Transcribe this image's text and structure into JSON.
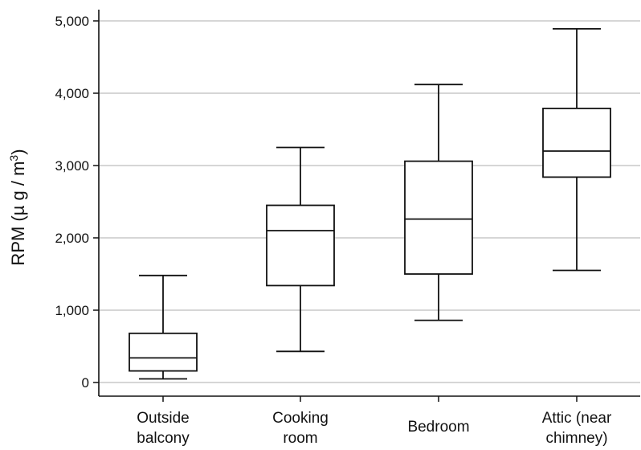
{
  "chart_data": {
    "type": "boxplot",
    "ylabel": "RPM (µ g / m3)",
    "ylim": [
      0,
      5000
    ],
    "yticks": [
      0,
      1000,
      2000,
      3000,
      4000,
      5000
    ],
    "ytick_labels": [
      "0",
      "1,000",
      "2,000",
      "3,000",
      "4,000",
      "5,000"
    ],
    "grid": true,
    "categories": [
      [
        "Outside",
        "balcony"
      ],
      [
        "Cooking",
        "room"
      ],
      [
        "Bedroom"
      ],
      [
        "Attic (near",
        "chimney)"
      ]
    ],
    "boxes": [
      {
        "min": 50,
        "q1": 160,
        "median": 340,
        "q3": 680,
        "max": 1480
      },
      {
        "min": 430,
        "q1": 1340,
        "median": 2100,
        "q3": 2450,
        "max": 3250
      },
      {
        "min": 860,
        "q1": 1500,
        "median": 2260,
        "q3": 3060,
        "max": 4120
      },
      {
        "min": 1550,
        "q1": 2840,
        "median": 3200,
        "q3": 3790,
        "max": 4890
      }
    ]
  },
  "colors": {
    "grid": "#bdbdbd",
    "axis": "#111111",
    "box_stroke": "#111111",
    "box_fill": "#ffffff"
  }
}
